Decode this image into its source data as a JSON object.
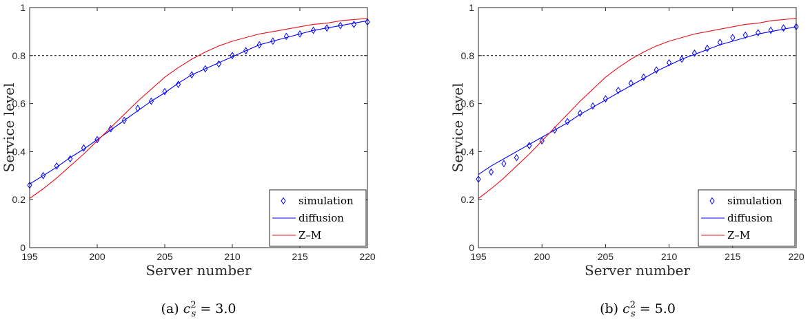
{
  "chart_data": [
    {
      "type": "line",
      "caption": {
        "prefix": "(a) ",
        "var": "c",
        "sup": "2",
        "sub": "s",
        "rest": " = 3.0"
      },
      "xlabel": "Server number",
      "ylabel": "Service level",
      "xlim": [
        195,
        220
      ],
      "ylim": [
        0,
        1
      ],
      "xticks": [
        195,
        200,
        205,
        210,
        215,
        220
      ],
      "yticks": [
        0,
        0.2,
        0.4,
        0.6,
        0.8,
        1
      ],
      "ytick_labels": [
        "0",
        "0.2",
        "0.4",
        "0.6",
        "0.8",
        "1"
      ],
      "reference_line": {
        "y": 0.8,
        "style": "dashed"
      },
      "legend": {
        "position": "bottom-right",
        "entries": [
          "simulation",
          "diffusion",
          "Z–M"
        ]
      },
      "series": [
        {
          "name": "simulation",
          "marker": "diamond",
          "color": "#0000ff",
          "x": [
            195,
            196,
            197,
            198,
            199,
            200,
            201,
            202,
            203,
            204,
            205,
            206,
            207,
            208,
            209,
            210,
            211,
            212,
            213,
            214,
            215,
            216,
            217,
            218,
            219,
            220
          ],
          "y": [
            0.26,
            0.3,
            0.34,
            0.37,
            0.415,
            0.45,
            0.495,
            0.53,
            0.58,
            0.61,
            0.65,
            0.68,
            0.72,
            0.745,
            0.765,
            0.8,
            0.82,
            0.845,
            0.86,
            0.88,
            0.89,
            0.905,
            0.915,
            0.925,
            0.93,
            0.94
          ]
        },
        {
          "name": "diffusion",
          "line": "solid",
          "color": "#0000ff",
          "x": [
            195,
            196,
            197,
            198,
            199,
            200,
            201,
            202,
            203,
            204,
            205,
            206,
            207,
            208,
            209,
            210,
            211,
            212,
            213,
            214,
            215,
            216,
            217,
            218,
            219,
            220
          ],
          "y": [
            0.265,
            0.3,
            0.335,
            0.375,
            0.41,
            0.45,
            0.49,
            0.53,
            0.57,
            0.61,
            0.645,
            0.685,
            0.72,
            0.745,
            0.77,
            0.795,
            0.82,
            0.845,
            0.86,
            0.875,
            0.89,
            0.905,
            0.915,
            0.925,
            0.935,
            0.945
          ]
        },
        {
          "name": "Z–M",
          "line": "solid",
          "color": "#e8101a",
          "x": [
            195,
            196,
            197,
            198,
            199,
            200,
            201,
            202,
            203,
            204,
            205,
            206,
            207,
            208,
            209,
            210,
            211,
            212,
            213,
            214,
            215,
            216,
            217,
            218,
            219,
            220
          ],
          "y": [
            0.205,
            0.245,
            0.29,
            0.34,
            0.39,
            0.445,
            0.5,
            0.555,
            0.61,
            0.66,
            0.71,
            0.75,
            0.785,
            0.815,
            0.84,
            0.86,
            0.875,
            0.89,
            0.9,
            0.91,
            0.92,
            0.93,
            0.935,
            0.945,
            0.95,
            0.955
          ]
        }
      ]
    },
    {
      "type": "line",
      "caption": {
        "prefix": "(b) ",
        "var": "c",
        "sup": "2",
        "sub": "s",
        "rest": " = 5.0"
      },
      "xlabel": "Server number",
      "ylabel": "Service level",
      "xlim": [
        195,
        220
      ],
      "ylim": [
        0,
        1
      ],
      "xticks": [
        195,
        200,
        205,
        210,
        215,
        220
      ],
      "yticks": [
        0,
        0.2,
        0.4,
        0.6,
        0.8,
        1
      ],
      "ytick_labels": [
        "0",
        "0.2",
        "0.4",
        "0.6",
        "0.8",
        "1"
      ],
      "reference_line": {
        "y": 0.8,
        "style": "dashed"
      },
      "legend": {
        "position": "bottom-right",
        "entries": [
          "simulation",
          "diffusion",
          "Z–M"
        ]
      },
      "series": [
        {
          "name": "simulation",
          "marker": "diamond",
          "color": "#0000ff",
          "x": [
            195,
            196,
            197,
            198,
            199,
            200,
            201,
            202,
            203,
            204,
            205,
            206,
            207,
            208,
            209,
            210,
            211,
            212,
            213,
            214,
            215,
            216,
            217,
            218,
            219,
            220
          ],
          "y": [
            0.285,
            0.315,
            0.35,
            0.375,
            0.425,
            0.445,
            0.49,
            0.525,
            0.56,
            0.59,
            0.62,
            0.655,
            0.685,
            0.71,
            0.74,
            0.77,
            0.785,
            0.81,
            0.83,
            0.855,
            0.875,
            0.885,
            0.895,
            0.905,
            0.915,
            0.92
          ]
        },
        {
          "name": "diffusion",
          "line": "solid",
          "color": "#0000ff",
          "x": [
            195,
            196,
            197,
            198,
            199,
            200,
            201,
            202,
            203,
            204,
            205,
            206,
            207,
            208,
            209,
            210,
            211,
            212,
            213,
            214,
            215,
            216,
            217,
            218,
            219,
            220
          ],
          "y": [
            0.305,
            0.34,
            0.37,
            0.4,
            0.43,
            0.46,
            0.49,
            0.52,
            0.555,
            0.585,
            0.615,
            0.645,
            0.675,
            0.705,
            0.735,
            0.76,
            0.785,
            0.805,
            0.825,
            0.845,
            0.86,
            0.875,
            0.89,
            0.9,
            0.91,
            0.92
          ]
        },
        {
          "name": "Z–M",
          "line": "solid",
          "color": "#e8101a",
          "x": [
            195,
            196,
            197,
            198,
            199,
            200,
            201,
            202,
            203,
            204,
            205,
            206,
            207,
            208,
            209,
            210,
            211,
            212,
            213,
            214,
            215,
            216,
            217,
            218,
            219,
            220
          ],
          "y": [
            0.205,
            0.245,
            0.29,
            0.34,
            0.39,
            0.445,
            0.5,
            0.555,
            0.61,
            0.66,
            0.71,
            0.75,
            0.785,
            0.815,
            0.84,
            0.86,
            0.875,
            0.89,
            0.9,
            0.91,
            0.92,
            0.93,
            0.935,
            0.945,
            0.95,
            0.955
          ]
        }
      ]
    }
  ]
}
